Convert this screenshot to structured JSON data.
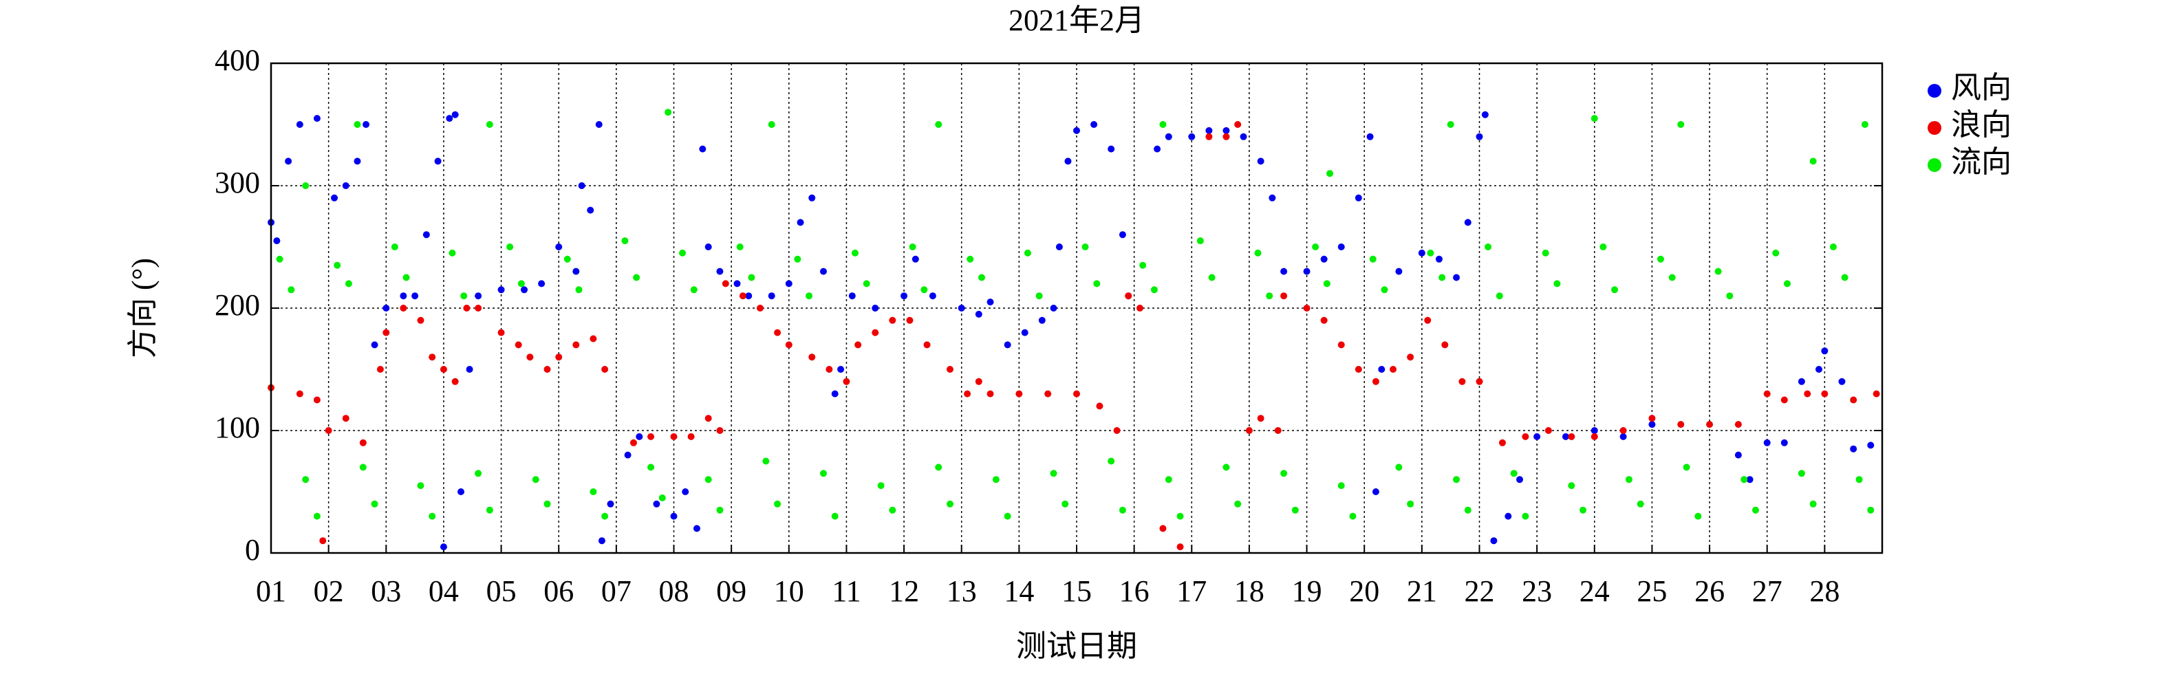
{
  "chart_data": {
    "type": "scatter",
    "title": "2021年2月",
    "xlabel": "测试日期",
    "ylabel": "方向 (°)",
    "xlim": [
      1,
      29
    ],
    "ylim": [
      0,
      400
    ],
    "xticks": [
      {
        "value": 1,
        "label": "01"
      },
      {
        "value": 2,
        "label": "02"
      },
      {
        "value": 3,
        "label": "03"
      },
      {
        "value": 4,
        "label": "04"
      },
      {
        "value": 5,
        "label": "05"
      },
      {
        "value": 6,
        "label": "06"
      },
      {
        "value": 7,
        "label": "07"
      },
      {
        "value": 8,
        "label": "08"
      },
      {
        "value": 9,
        "label": "09"
      },
      {
        "value": 10,
        "label": "10"
      },
      {
        "value": 11,
        "label": "11"
      },
      {
        "value": 12,
        "label": "12"
      },
      {
        "value": 13,
        "label": "13"
      },
      {
        "value": 14,
        "label": "14"
      },
      {
        "value": 15,
        "label": "15"
      },
      {
        "value": 16,
        "label": "16"
      },
      {
        "value": 17,
        "label": "17"
      },
      {
        "value": 18,
        "label": "18"
      },
      {
        "value": 19,
        "label": "19"
      },
      {
        "value": 20,
        "label": "20"
      },
      {
        "value": 21,
        "label": "21"
      },
      {
        "value": 22,
        "label": "22"
      },
      {
        "value": 23,
        "label": "23"
      },
      {
        "value": 24,
        "label": "24"
      },
      {
        "value": 25,
        "label": "25"
      },
      {
        "value": 26,
        "label": "26"
      },
      {
        "value": 27,
        "label": "27"
      },
      {
        "value": 28,
        "label": "28"
      }
    ],
    "yticks": [
      0,
      100,
      200,
      300,
      400
    ],
    "grid": true,
    "legend": "right",
    "series": [
      {
        "name": "风向",
        "color": "#0000ee",
        "x": [
          1.0,
          1.1,
          1.3,
          1.5,
          1.8,
          2.1,
          2.3,
          2.5,
          2.65,
          2.8,
          3.0,
          3.3,
          3.5,
          3.7,
          3.9,
          4.1,
          4.2,
          4.0,
          4.3,
          4.45,
          4.6,
          5.0,
          5.4,
          5.7,
          6.0,
          6.3,
          6.4,
          6.55,
          6.7,
          6.75,
          6.9,
          7.2,
          7.4,
          7.7,
          8.0,
          8.2,
          8.4,
          8.5,
          8.6,
          8.8,
          9.1,
          9.3,
          9.7,
          10.0,
          10.2,
          10.4,
          10.6,
          10.8,
          10.9,
          11.1,
          11.5,
          12.0,
          12.2,
          12.5,
          13.0,
          13.3,
          13.5,
          13.8,
          14.1,
          14.4,
          14.6,
          14.7,
          14.85,
          15.0,
          15.3,
          15.6,
          15.8,
          15.9,
          16.4,
          16.6,
          17.0,
          17.3,
          17.6,
          17.9,
          18.2,
          18.4,
          18.6,
          19.0,
          19.3,
          19.6,
          19.9,
          20.1,
          20.2,
          20.3,
          20.6,
          21.0,
          21.3,
          21.6,
          21.8,
          22.0,
          22.1,
          22.25,
          22.5,
          22.7,
          23.0,
          23.5,
          24.0,
          24.5,
          25.0,
          26.5,
          26.7,
          27.0,
          27.3,
          27.6,
          27.9,
          28.0,
          28.3,
          28.5,
          28.8
        ],
        "values": [
          270,
          255,
          320,
          350,
          355,
          290,
          300,
          320,
          350,
          170,
          200,
          210,
          210,
          260,
          320,
          355,
          358,
          5,
          50,
          150,
          210,
          215,
          215,
          220,
          250,
          230,
          300,
          280,
          350,
          10,
          40,
          80,
          95,
          40,
          30,
          50,
          20,
          330,
          250,
          230,
          220,
          210,
          210,
          220,
          270,
          290,
          230,
          130,
          150,
          210,
          200,
          210,
          240,
          210,
          200,
          195,
          205,
          170,
          180,
          190,
          200,
          250,
          320,
          345,
          350,
          330,
          260,
          210,
          330,
          340,
          340,
          345,
          345,
          340,
          320,
          290,
          230,
          230,
          240,
          250,
          290,
          340,
          50,
          150,
          230,
          245,
          240,
          225,
          270,
          340,
          358,
          10,
          30,
          60,
          95,
          95,
          100,
          95,
          105,
          80,
          60,
          90,
          90,
          140,
          150,
          165,
          140,
          85,
          88
        ]
      },
      {
        "name": "浪向",
        "color": "#ee0000",
        "x": [
          1.0,
          1.5,
          1.8,
          1.9,
          2.0,
          2.3,
          2.6,
          2.9,
          3.0,
          3.3,
          3.6,
          3.8,
          4.0,
          4.2,
          4.4,
          4.6,
          5.0,
          5.3,
          5.5,
          5.8,
          6.0,
          6.3,
          6.6,
          6.8,
          7.3,
          7.6,
          8.0,
          8.3,
          8.6,
          8.8,
          8.9,
          9.2,
          9.5,
          9.8,
          10.0,
          10.4,
          10.7,
          11.0,
          11.2,
          11.5,
          11.8,
          12.1,
          12.4,
          12.8,
          13.1,
          13.3,
          13.5,
          14.0,
          14.5,
          15.0,
          15.4,
          15.7,
          15.9,
          16.1,
          16.5,
          16.8,
          17.3,
          17.6,
          17.8,
          18.0,
          18.2,
          18.5,
          18.6,
          19.0,
          19.3,
          19.6,
          19.9,
          20.2,
          20.5,
          20.8,
          21.1,
          21.4,
          21.7,
          22.0,
          22.4,
          22.8,
          23.2,
          23.6,
          24.0,
          24.5,
          25.0,
          25.5,
          26.0,
          26.5,
          27.0,
          27.3,
          27.7,
          28.0,
          28.5,
          28.9
        ],
        "values": [
          135,
          130,
          125,
          10,
          100,
          110,
          90,
          150,
          180,
          200,
          190,
          160,
          150,
          140,
          200,
          200,
          180,
          170,
          160,
          150,
          160,
          170,
          175,
          150,
          90,
          95,
          95,
          95,
          110,
          100,
          220,
          210,
          200,
          180,
          170,
          160,
          150,
          140,
          170,
          180,
          190,
          190,
          170,
          150,
          130,
          140,
          130,
          130,
          130,
          130,
          120,
          100,
          210,
          200,
          20,
          5,
          340,
          340,
          350,
          100,
          110,
          100,
          210,
          200,
          190,
          170,
          150,
          140,
          150,
          160,
          190,
          170,
          140,
          140,
          90,
          95,
          100,
          95,
          95,
          100,
          110,
          105,
          105,
          105,
          130,
          125,
          130,
          130,
          125,
          130
        ]
      },
      {
        "name": "流向",
        "color": "#00ee00",
        "x": [
          1.15,
          1.35,
          1.6,
          1.8,
          2.15,
          2.35,
          2.6,
          2.8,
          3.15,
          3.35,
          3.6,
          3.8,
          4.15,
          4.35,
          4.6,
          4.8,
          5.15,
          5.35,
          5.6,
          5.8,
          6.15,
          6.35,
          6.6,
          6.8,
          7.15,
          7.35,
          7.6,
          7.8,
          8.15,
          8.35,
          8.6,
          8.8,
          9.15,
          9.35,
          9.6,
          9.8,
          10.15,
          10.35,
          10.6,
          10.8,
          11.15,
          11.35,
          11.6,
          11.8,
          12.15,
          12.35,
          12.6,
          12.8,
          13.15,
          13.35,
          13.6,
          13.8,
          14.15,
          14.35,
          14.6,
          14.8,
          15.15,
          15.35,
          15.6,
          15.8,
          16.15,
          16.35,
          16.6,
          16.8,
          17.15,
          17.35,
          17.6,
          17.8,
          18.15,
          18.35,
          18.6,
          18.8,
          19.15,
          19.35,
          19.6,
          19.8,
          20.15,
          20.35,
          20.6,
          20.8,
          21.15,
          21.35,
          21.6,
          21.8,
          22.15,
          22.35,
          22.6,
          22.8,
          23.15,
          23.35,
          23.6,
          23.8,
          24.15,
          24.35,
          24.6,
          24.8,
          25.15,
          25.35,
          25.6,
          25.8,
          26.15,
          26.35,
          26.6,
          26.8,
          27.15,
          27.35,
          27.6,
          27.8,
          28.15,
          28.35,
          28.6,
          28.8,
          1.6,
          2.5,
          4.8,
          7.9,
          9.7,
          12.6,
          16.5,
          19.4,
          21.5,
          24.0,
          25.5,
          27.8,
          28.7
        ],
        "values": [
          240,
          215,
          60,
          30,
          235,
          220,
          70,
          40,
          250,
          225,
          55,
          30,
          245,
          210,
          65,
          35,
          250,
          220,
          60,
          40,
          240,
          215,
          50,
          30,
          255,
          225,
          70,
          45,
          245,
          215,
          60,
          35,
          250,
          225,
          75,
          40,
          240,
          210,
          65,
          30,
          245,
          220,
          55,
          35,
          250,
          215,
          70,
          40,
          240,
          225,
          60,
          30,
          245,
          210,
          65,
          40,
          250,
          220,
          75,
          35,
          235,
          215,
          60,
          30,
          255,
          225,
          70,
          40,
          245,
          210,
          65,
          35,
          250,
          220,
          55,
          30,
          240,
          215,
          70,
          40,
          245,
          225,
          60,
          35,
          250,
          210,
          65,
          30,
          245,
          220,
          55,
          35,
          250,
          215,
          60,
          40,
          240,
          225,
          70,
          30,
          230,
          210,
          60,
          35,
          245,
          220,
          65,
          40,
          250,
          225,
          60,
          35,
          300,
          350,
          350,
          360,
          350,
          350,
          350,
          310,
          350,
          355,
          350,
          320,
          350
        ]
      }
    ]
  }
}
